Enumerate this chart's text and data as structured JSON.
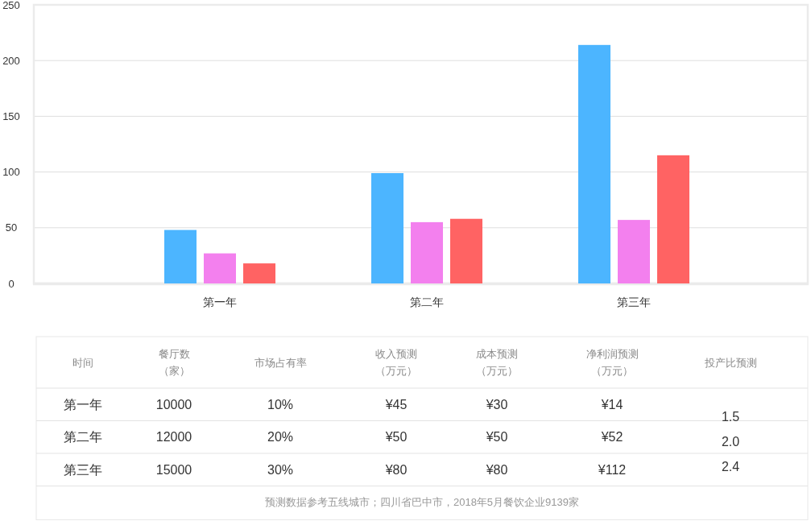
{
  "chart_data": [
    {
      "type": "bar",
      "categories": [
        "第一年",
        "第二年",
        "第三年"
      ],
      "series": [
        {
          "color": "#4cb5ff",
          "values": [
            48,
            99,
            214
          ]
        },
        {
          "color": "#f380ee",
          "values": [
            27,
            55,
            57
          ]
        },
        {
          "color": "#ff6363",
          "values": [
            18,
            58,
            115
          ]
        }
      ],
      "ylim": [
        0,
        250
      ],
      "yticks": [
        0,
        50,
        100,
        150,
        200,
        250
      ],
      "grid": "y"
    },
    {
      "type": "other",
      "categories": [
        "时间",
        "餐厅数（家）",
        "市场占有率",
        "收入预测（万元）",
        "成本预测（万元）",
        "净利润预测（万元）",
        "投产比预测"
      ],
      "cell_labels": [
        [
          "第一年",
          "10000",
          "10%",
          "¥45",
          "¥30",
          "¥14",
          "1.5"
        ],
        [
          "第二年",
          "12000",
          "20%",
          "¥50",
          "¥50",
          "¥52",
          "2.0"
        ],
        [
          "第三年",
          "15000",
          "30%",
          "¥80",
          "¥80",
          "¥112",
          "2.4"
        ]
      ],
      "annotations": [
        "预测数据参考五线城市；四川省巴中市，2018年5月餐饮企业9139家"
      ]
    }
  ]
}
